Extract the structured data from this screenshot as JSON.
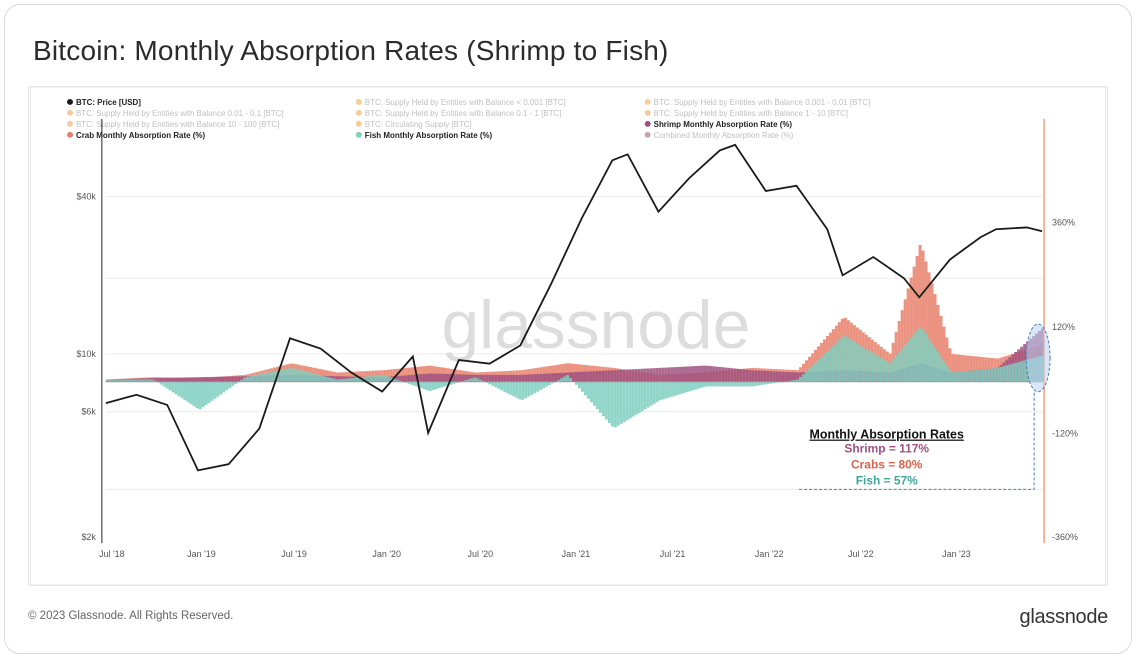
{
  "page": {
    "title": "Bitcoin: Monthly Absorption Rates (Shrimp to Fish)",
    "copyright": "© 2023 Glassnode. All Rights Reserved.",
    "brand": "glassnode",
    "watermark": "glassnode"
  },
  "colors": {
    "price": "#1a1a1a",
    "shrimp": "#a0517f",
    "crab": "#e8806a",
    "fish": "#7fcfc0",
    "accent_axis": "#f0a080",
    "legend_orange": "#f0a24a",
    "legend_faded": "#c8c8c8"
  },
  "chart_data": {
    "type": "area",
    "title": "Bitcoin: Monthly Absorption Rates (Shrimp to Fish)",
    "legend": [
      {
        "label": "BTC: Price [USD]",
        "color": "#1a1a1a",
        "active": true
      },
      {
        "label": "BTC: Supply Held by Entities with Balance < 0.001 [BTC]",
        "color": "#f0a24a",
        "active": false
      },
      {
        "label": "BTC: Supply Held by Entities with Balance 0.001 - 0.01 [BTC]",
        "color": "#f0a24a",
        "active": false
      },
      {
        "label": "BTC: Supply Held by Entities with Balance 0.01 - 0.1 [BTC]",
        "color": "#f0a24a",
        "active": false
      },
      {
        "label": "BTC: Supply Held by Entities with Balance 0.1 - 1 [BTC]",
        "color": "#f0a24a",
        "active": false
      },
      {
        "label": "BTC: Supply Held by Entities with Balance 1 - 10 [BTC]",
        "color": "#f0a24a",
        "active": false
      },
      {
        "label": "BTC: Supply Held by Entities with Balance 10 - 100 [BTC]",
        "color": "#f0a24a",
        "active": false
      },
      {
        "label": "BTC: Circulating Supply [BTC]",
        "color": "#f0a24a",
        "active": false
      },
      {
        "label": "Shrimp Monthly Absorption Rate (%)",
        "color": "#a0517f",
        "active": true
      },
      {
        "label": "Crab Monthly Absorption Rate (%)",
        "color": "#e8806a",
        "active": true
      },
      {
        "label": "Fish Monthly Absorption Rate (%)",
        "color": "#7fcfc0",
        "active": true
      },
      {
        "label": "Combined Monthly Absorption Rate (%)",
        "color": "#a0517f",
        "active": false
      }
    ],
    "x_ticks": [
      "Jul '18",
      "Jan '19",
      "Jul '19",
      "Jan '20",
      "Jul '20",
      "Jan '21",
      "Jul '21",
      "Jan '22",
      "Jul '22",
      "Jan '23"
    ],
    "y_left_ticks": [
      "$40k",
      "$10k",
      "$6k",
      "$2k"
    ],
    "y_right_ticks": [
      "360%",
      "120%",
      "-120%",
      "-360%"
    ],
    "y_left_scale": "log",
    "price_series": {
      "name": "BTC: Price [USD]",
      "x": [
        "2018-06",
        "2018-08",
        "2018-10",
        "2018-12",
        "2019-02",
        "2019-04",
        "2019-06",
        "2019-08",
        "2019-10",
        "2019-12",
        "2020-02",
        "2020-03",
        "2020-05",
        "2020-07",
        "2020-09",
        "2020-11",
        "2021-01",
        "2021-03",
        "2021-04",
        "2021-06",
        "2021-08",
        "2021-10",
        "2021-11",
        "2022-01",
        "2022-03",
        "2022-05",
        "2022-06",
        "2022-08",
        "2022-10",
        "2022-11",
        "2023-01",
        "2023-03",
        "2023-04",
        "2023-06",
        "2023-07"
      ],
      "values": [
        6500,
        7000,
        6400,
        3600,
        3800,
        5200,
        11500,
        10500,
        8500,
        7200,
        9800,
        5000,
        9500,
        9200,
        10800,
        18500,
        33000,
        55000,
        58000,
        35000,
        47000,
        60000,
        63000,
        42000,
        44000,
        30000,
        20000,
        23500,
        19500,
        16500,
        23000,
        28000,
        30000,
        30500,
        29500
      ]
    },
    "absorption_series": {
      "x": [
        "2018-06",
        "2018-09",
        "2018-12",
        "2019-03",
        "2019-06",
        "2019-09",
        "2019-12",
        "2020-03",
        "2020-06",
        "2020-09",
        "2020-12",
        "2021-03",
        "2021-06",
        "2021-09",
        "2021-12",
        "2022-03",
        "2022-06",
        "2022-09",
        "2022-11",
        "2023-01",
        "2023-04",
        "2023-07"
      ],
      "shrimp": [
        5,
        8,
        10,
        12,
        15,
        12,
        10,
        18,
        15,
        15,
        20,
        25,
        30,
        35,
        25,
        20,
        25,
        20,
        40,
        20,
        30,
        117
      ],
      "crab": [
        5,
        10,
        8,
        15,
        40,
        20,
        25,
        35,
        20,
        25,
        40,
        30,
        15,
        20,
        30,
        25,
        140,
        60,
        300,
        60,
        50,
        80
      ],
      "fish": [
        5,
        5,
        -60,
        10,
        30,
        5,
        15,
        -20,
        10,
        -40,
        15,
        -100,
        -40,
        -10,
        -10,
        5,
        100,
        40,
        120,
        20,
        30,
        57
      ]
    },
    "annotation": {
      "heading": "Monthly Absorption Rates",
      "lines": [
        {
          "label": "Shrimp = 117%",
          "color": "#a0517f"
        },
        {
          "label": "Crabs = 80%",
          "color": "#e8806a"
        },
        {
          "label": "Fish = 57%",
          "color": "#4fb0a0"
        }
      ]
    }
  }
}
